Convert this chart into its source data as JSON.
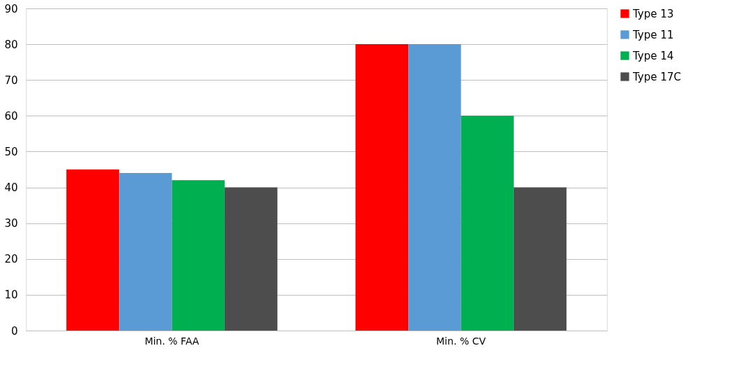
{
  "chart_data": {
    "type": "bar",
    "categories": [
      "Min. % FAA",
      "Min. % CV"
    ],
    "series": [
      {
        "name": "Type 13",
        "color": "#ff0000",
        "values": [
          45,
          80
        ]
      },
      {
        "name": "Type 11",
        "color": "#5b9bd5",
        "values": [
          44,
          80
        ]
      },
      {
        "name": "Type 14",
        "color": "#00b050",
        "values": [
          42,
          60
        ]
      },
      {
        "name": "Type 17C",
        "color": "#4d4d4d",
        "values": [
          40,
          40
        ]
      }
    ],
    "ylim": [
      0,
      90
    ],
    "yticks": [
      0,
      10,
      20,
      30,
      40,
      50,
      60,
      70,
      80,
      90
    ],
    "grid": "y",
    "legend": "right"
  }
}
